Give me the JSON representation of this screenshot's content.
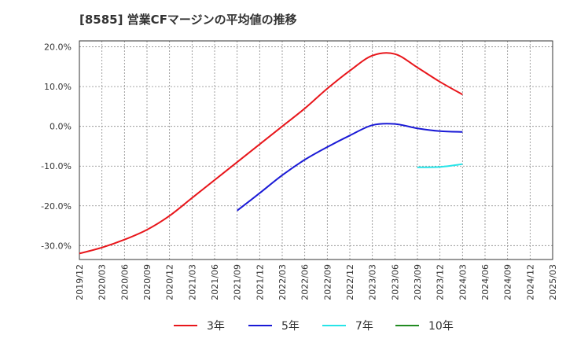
{
  "chart_data": {
    "type": "line",
    "title": "[8585]  営業CFマージンの平均値の推移",
    "xlabel": "",
    "ylabel": "",
    "x_ticks": [
      "2019/12",
      "2020/03",
      "2020/06",
      "2020/09",
      "2020/12",
      "2021/03",
      "2021/06",
      "2021/09",
      "2021/12",
      "2022/03",
      "2022/06",
      "2022/09",
      "2022/12",
      "2023/03",
      "2023/06",
      "2023/09",
      "2023/12",
      "2024/03",
      "2024/06",
      "2024/09",
      "2024/12",
      "2025/03"
    ],
    "y_ticks": [
      20,
      10,
      0,
      -10,
      -20,
      -30
    ],
    "y_tick_labels": [
      "20.0%",
      "10.0%",
      "0.0%",
      "-10.0%",
      "-20.0%",
      "-30.0%"
    ],
    "ylim": [
      -33.5,
      21.5
    ],
    "grid": true,
    "legend_position": "bottom",
    "series": [
      {
        "name": "3年",
        "color": "#e8161b",
        "x": [
          "2019/12",
          "2020/03",
          "2020/06",
          "2020/09",
          "2020/12",
          "2021/03",
          "2021/06",
          "2021/09",
          "2021/12",
          "2022/03",
          "2022/06",
          "2022/09",
          "2022/12",
          "2023/03",
          "2023/06",
          "2023/09",
          "2023/12",
          "2024/03"
        ],
        "values": [
          -32.0,
          -30.5,
          -28.5,
          -26.0,
          -22.5,
          -18.0,
          -13.5,
          -9.0,
          -4.5,
          0.0,
          4.5,
          9.5,
          14.0,
          17.8,
          18.2,
          14.8,
          11.2,
          8.0
        ]
      },
      {
        "name": "5年",
        "color": "#1a1ad6",
        "x": [
          "2021/09",
          "2021/12",
          "2022/03",
          "2022/06",
          "2022/09",
          "2022/12",
          "2023/03",
          "2023/06",
          "2023/09",
          "2023/12",
          "2024/03"
        ],
        "values": [
          -21.2,
          -16.8,
          -12.3,
          -8.4,
          -5.2,
          -2.3,
          0.3,
          0.6,
          -0.5,
          -1.2,
          -1.4
        ]
      },
      {
        "name": "7年",
        "color": "#27e4e8",
        "x": [
          "2023/09",
          "2023/12",
          "2024/03"
        ],
        "values": [
          -10.3,
          -10.2,
          -9.5
        ]
      },
      {
        "name": "10年",
        "color": "#228b22",
        "x": [],
        "values": []
      }
    ]
  }
}
